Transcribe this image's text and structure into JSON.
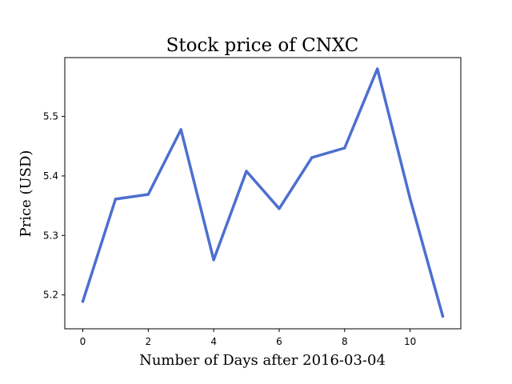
{
  "chart_data": {
    "type": "line",
    "title": "Stock price of CNXC",
    "xlabel": "Number of Days after 2016-03-04",
    "ylabel": "Price (USD)",
    "x": [
      0,
      1,
      2,
      3,
      4,
      5,
      6,
      7,
      8,
      9,
      10,
      11
    ],
    "series": [
      {
        "values": [
          5.189,
          5.361,
          5.369,
          5.478,
          5.259,
          5.408,
          5.345,
          5.431,
          5.447,
          5.58,
          5.362,
          5.164
        ]
      }
    ],
    "xlim": [
      -0.55,
      11.55
    ],
    "ylim": [
      5.143,
      5.599
    ],
    "xticks": [
      0,
      2,
      4,
      6,
      8,
      10
    ],
    "yticks": [
      5.2,
      5.3,
      5.4,
      5.5
    ],
    "grid": false,
    "line_color": "#4d6fcf"
  }
}
